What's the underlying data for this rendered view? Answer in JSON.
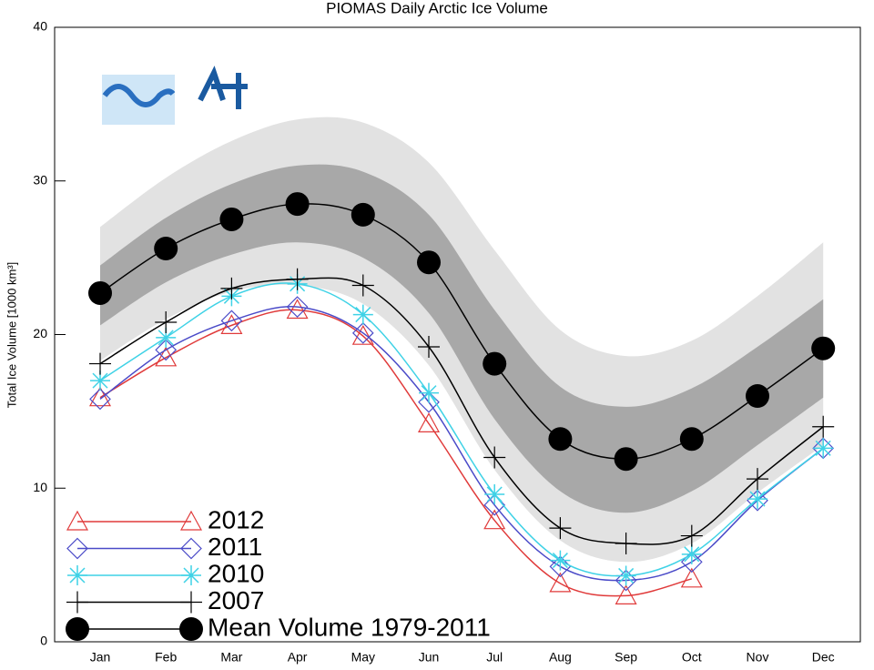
{
  "chart_data": {
    "type": "line",
    "title": "PIOMAS Daily Arctic Ice Volume",
    "ylabel": "Total Ice Volume [1000 km³]",
    "categories": [
      "Jan",
      "Feb",
      "Mar",
      "Apr",
      "May",
      "Jun",
      "Jul",
      "Aug",
      "Sep",
      "Oct",
      "Nov",
      "Dec"
    ],
    "ylim": [
      0,
      40
    ],
    "yticks": [
      0,
      10,
      20,
      30,
      40
    ],
    "bands": [
      {
        "color": "#e2e2e2",
        "low": [
          18.3,
          21.0,
          22.8,
          23.2,
          22.0,
          18.0,
          11.2,
          6.6,
          5.2,
          6.4,
          9.7,
          12.8
        ],
        "high": [
          27.0,
          30.2,
          32.6,
          34.0,
          33.8,
          31.2,
          25.5,
          20.3,
          18.6,
          19.6,
          22.5,
          26.0
        ]
      },
      {
        "color": "#a8a8a8",
        "low": [
          20.6,
          23.4,
          25.2,
          26.0,
          25.0,
          21.4,
          14.5,
          9.8,
          8.4,
          9.8,
          12.8,
          15.9
        ],
        "high": [
          24.5,
          27.6,
          29.8,
          31.0,
          30.6,
          27.8,
          21.6,
          16.6,
          15.3,
          16.5,
          19.2,
          22.3
        ]
      }
    ],
    "series": [
      {
        "name": "2012",
        "color": "#e03a3a",
        "marker": "triangle",
        "values": [
          15.9,
          18.5,
          20.6,
          21.6,
          19.9,
          14.2,
          7.9,
          3.8,
          3.0,
          4.1,
          null,
          null
        ]
      },
      {
        "name": "2011",
        "color": "#4a4ac8",
        "marker": "diamond",
        "values": [
          15.8,
          19.0,
          20.9,
          21.8,
          20.1,
          15.6,
          8.9,
          4.9,
          4.0,
          5.2,
          9.2,
          12.6
        ]
      },
      {
        "name": "2010",
        "color": "#3fd2e6",
        "marker": "asterisk",
        "values": [
          17.0,
          19.8,
          22.5,
          23.3,
          21.3,
          16.2,
          9.6,
          5.3,
          4.3,
          5.7,
          9.3,
          12.6
        ]
      },
      {
        "name": "2007",
        "color": "#000000",
        "marker": "plus",
        "values": [
          18.1,
          20.8,
          23.0,
          23.6,
          23.2,
          19.2,
          12.0,
          7.4,
          6.4,
          6.9,
          10.6,
          14.0
        ]
      },
      {
        "name": "Mean Volume 1979-2011",
        "color": "#000000",
        "marker": "circle",
        "values": [
          22.7,
          25.6,
          27.5,
          28.5,
          27.8,
          24.7,
          18.1,
          13.2,
          11.9,
          13.2,
          16.0,
          19.1
        ]
      }
    ]
  }
}
